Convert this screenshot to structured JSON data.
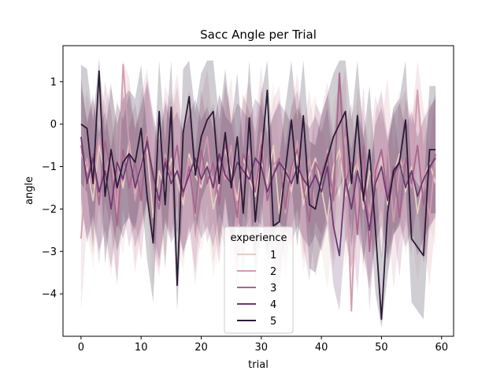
{
  "chart_data": {
    "type": "line",
    "title": "Sacc Angle per Trial",
    "xlabel": "trial",
    "ylabel": "angle",
    "xlim": [
      -3,
      62
    ],
    "ylim": [
      -5,
      1.85
    ],
    "xticks": [
      0,
      10,
      20,
      30,
      40,
      50,
      60
    ],
    "yticks": [
      -4,
      -3,
      -2,
      -1,
      0,
      1
    ],
    "grid": false,
    "legend": {
      "title": "experience",
      "placement": "lower-center"
    },
    "x": [
      0,
      1,
      2,
      3,
      4,
      5,
      6,
      7,
      8,
      9,
      10,
      11,
      12,
      13,
      14,
      15,
      16,
      17,
      18,
      19,
      20,
      21,
      22,
      23,
      24,
      25,
      26,
      27,
      28,
      29,
      30,
      31,
      32,
      33,
      34,
      35,
      36,
      37,
      38,
      39,
      40,
      41,
      42,
      43,
      44,
      45,
      46,
      47,
      48,
      49,
      50,
      51,
      52,
      53,
      54,
      55,
      56,
      57,
      58,
      59
    ],
    "series": [
      {
        "name": "1",
        "color": "#e8cdc0",
        "band_color": "#e8cdc0",
        "values": [
          -0.7,
          -1.0,
          -1.8,
          -0.5,
          -1.2,
          -2.0,
          -0.9,
          -1.5,
          -0.4,
          -1.7,
          -1.0,
          -0.6,
          -2.2,
          -1.1,
          -1.6,
          -0.8,
          -1.3,
          -1.9,
          -0.7,
          -1.2,
          -1.5,
          -0.9,
          -2.0,
          -1.4,
          -0.6,
          -1.1,
          -1.8,
          -0.8,
          -1.3,
          -1.7,
          -0.9,
          -1.4,
          -0.5,
          -2.1,
          -1.0,
          -1.6,
          -0.7,
          -1.9,
          -1.2,
          -0.8,
          -1.5,
          -2.3,
          -1.0,
          -0.6,
          -1.7,
          -1.3,
          -0.9,
          -2.0,
          -1.1,
          -1.5,
          -0.8,
          -1.9,
          -1.2,
          -0.7,
          -1.6,
          -1.0,
          -2.1,
          -1.3,
          -0.9,
          -1.4
        ],
        "lower": [
          -2.2,
          -2.6,
          -3.4,
          -2.0,
          -2.8,
          -3.6,
          -2.4,
          -3.1,
          -1.9,
          -3.3,
          -2.5,
          -2.1,
          -3.8,
          -2.6,
          -3.2,
          -2.3,
          -2.9,
          -3.5,
          -2.2,
          -2.7,
          -3.0,
          -2.4,
          -3.6,
          -2.9,
          -2.1,
          -2.6,
          -3.4,
          -2.3,
          -2.8,
          -3.3,
          -2.4,
          -2.9,
          -2.0,
          -3.7,
          -2.5,
          -3.1,
          -2.2,
          -3.5,
          -2.7,
          -2.3,
          -3.0,
          -3.9,
          -2.5,
          -2.1,
          -3.3,
          -2.8,
          -2.4,
          -3.6,
          -2.6,
          -3.0,
          -2.3,
          -3.5,
          -2.7,
          -2.2,
          -3.1,
          -2.5,
          -3.7,
          -2.8,
          -2.4,
          -2.9
        ],
        "upper": [
          0.8,
          0.6,
          -0.2,
          1.0,
          0.4,
          -0.4,
          0.6,
          0.1,
          1.1,
          -0.1,
          0.5,
          0.9,
          -0.6,
          0.4,
          0.0,
          0.7,
          0.3,
          -0.3,
          0.8,
          0.3,
          0.0,
          0.6,
          -0.4,
          0.1,
          0.9,
          0.4,
          -0.2,
          0.7,
          0.2,
          -0.1,
          0.6,
          0.1,
          1.0,
          -0.5,
          0.5,
          -0.1,
          0.8,
          -0.3,
          0.3,
          0.7,
          0.0,
          -0.7,
          0.5,
          0.9,
          -0.1,
          0.2,
          0.6,
          -0.4,
          0.4,
          0.0,
          0.7,
          -0.3,
          0.3,
          0.8,
          -0.1,
          0.5,
          -0.5,
          0.2,
          0.6,
          0.1
        ]
      },
      {
        "name": "2",
        "color": "#d49aae",
        "band_color": "#d49aae",
        "values": [
          -2.7,
          -0.8,
          -1.5,
          -0.3,
          -1.2,
          -0.6,
          -2.1,
          1.4,
          -0.5,
          -1.8,
          -0.9,
          -0.2,
          -1.4,
          -2.0,
          -0.7,
          -1.1,
          -0.4,
          -1.6,
          -0.8,
          -2.2,
          -1.0,
          -0.3,
          -1.7,
          -0.9,
          -1.3,
          -0.5,
          -2.4,
          -1.1,
          -0.6,
          -1.5,
          -0.2,
          -1.9,
          -1.0,
          -0.7,
          -2.1,
          -1.2,
          -0.4,
          -1.6,
          -0.8,
          -2.0,
          -1.3,
          -0.6,
          -1.8,
          -1.0,
          -0.3,
          -4.4,
          -0.7,
          -1.4,
          -2.1,
          -0.9,
          -1.6,
          -0.5,
          -2.3,
          -1.1,
          -0.8,
          -1.5,
          0.8,
          -1.2,
          -2.2,
          -0.7
        ],
        "lower": [
          -4.4,
          -2.4,
          -3.1,
          -1.9,
          -2.9,
          -2.2,
          -3.7,
          -0.4,
          -2.1,
          -3.5,
          -2.5,
          -1.8,
          -3.0,
          -3.6,
          -2.3,
          -2.7,
          -2.0,
          -3.2,
          -2.4,
          -3.8,
          -2.6,
          -1.9,
          -3.3,
          -2.5,
          -2.9,
          -2.1,
          -4.0,
          -2.7,
          -2.2,
          -3.1,
          -1.8,
          -3.5,
          -2.6,
          -2.3,
          -3.7,
          -2.8,
          -2.0,
          -3.2,
          -2.4,
          -3.6,
          -2.9,
          -2.2,
          -3.4,
          -2.6,
          -1.9,
          -4.5,
          -2.3,
          -3.0,
          -3.7,
          -2.5,
          -3.2,
          -2.1,
          -3.9,
          -2.7,
          -2.4,
          -3.1,
          -0.8,
          -2.8,
          -3.8,
          -2.3
        ],
        "upper": [
          -1.0,
          0.8,
          0.1,
          1.3,
          0.4,
          1.0,
          -0.5,
          1.5,
          1.1,
          -0.2,
          0.7,
          1.3,
          0.2,
          -0.4,
          0.9,
          0.5,
          1.2,
          0.0,
          0.8,
          -0.6,
          0.6,
          1.3,
          -0.1,
          0.7,
          0.3,
          1.1,
          -0.8,
          0.5,
          1.0,
          0.1,
          1.4,
          -0.3,
          0.6,
          0.9,
          -0.5,
          0.4,
          1.2,
          0.0,
          0.8,
          -0.4,
          0.3,
          1.0,
          -0.2,
          0.6,
          1.3,
          -2.8,
          0.9,
          0.2,
          -0.5,
          0.7,
          0.0,
          1.1,
          -0.7,
          0.5,
          0.8,
          0.1,
          1.5,
          0.4,
          -0.6,
          0.9
        ]
      },
      {
        "name": "3",
        "color": "#a8658e",
        "band_color": "#a8658e",
        "values": [
          -0.5,
          -1.3,
          -0.7,
          -1.9,
          -0.4,
          -1.1,
          -2.4,
          -0.6,
          -1.5,
          -0.9,
          -1.8,
          -0.3,
          -1.4,
          -2.0,
          -0.8,
          -1.2,
          -0.5,
          -1.7,
          -1.0,
          -2.1,
          -0.6,
          -1.4,
          -0.9,
          -1.9,
          -0.4,
          -1.3,
          -2.2,
          -0.7,
          -1.1,
          -1.6,
          -0.5,
          -1.8,
          -1.2,
          -0.8,
          -2.0,
          -1.0,
          -0.6,
          -1.5,
          -2.3,
          -0.9,
          -1.2,
          -0.7,
          -1.8,
          1.2,
          -1.4,
          -0.9,
          -2.6,
          -0.5,
          -3.0,
          -1.1,
          -0.6,
          -1.7,
          -1.0,
          -2.2,
          -0.8,
          -1.4,
          -0.5,
          -1.9,
          -1.1,
          -0.7
        ],
        "lower": [
          -1.9,
          -2.7,
          -2.1,
          -3.3,
          -1.8,
          -2.5,
          -3.8,
          -2.0,
          -2.9,
          -2.3,
          -3.2,
          -1.7,
          -2.8,
          -3.4,
          -2.2,
          -2.6,
          -1.9,
          -3.1,
          -2.4,
          -3.5,
          -2.0,
          -2.8,
          -2.3,
          -3.3,
          -1.8,
          -2.7,
          -3.6,
          -2.1,
          -2.5,
          -3.0,
          -1.9,
          -3.2,
          -2.6,
          -2.2,
          -3.4,
          -2.4,
          -2.0,
          -2.9,
          -3.7,
          -2.3,
          -2.6,
          -2.1,
          -3.2,
          -0.2,
          -2.8,
          -2.3,
          -4.0,
          -1.9,
          -4.4,
          -2.5,
          -2.0,
          -3.1,
          -2.4,
          -3.6,
          -2.2,
          -2.8,
          -1.9,
          -3.3,
          -2.5,
          -2.1
        ],
        "upper": [
          0.9,
          0.1,
          0.7,
          -0.5,
          1.0,
          0.3,
          -1.0,
          0.8,
          -0.1,
          0.5,
          -0.4,
          1.1,
          0.0,
          -0.6,
          0.6,
          0.2,
          0.9,
          -0.3,
          0.4,
          -0.7,
          0.8,
          0.0,
          0.5,
          -0.5,
          1.0,
          0.1,
          -0.8,
          0.7,
          0.3,
          -0.2,
          0.9,
          -0.4,
          0.2,
          0.6,
          -0.6,
          0.4,
          0.8,
          -0.1,
          -0.9,
          0.5,
          0.2,
          0.7,
          -0.4,
          1.3,
          0.0,
          0.5,
          -1.2,
          0.9,
          -1.6,
          0.3,
          0.8,
          -0.3,
          0.4,
          -0.8,
          0.6,
          0.0,
          0.9,
          -0.5,
          0.3,
          0.7
        ]
      },
      {
        "name": "4",
        "color": "#6b3a71",
        "band_color": "#6b3a71",
        "values": [
          -0.3,
          -1.4,
          -0.8,
          -1.6,
          -1.1,
          -2.0,
          -0.9,
          -1.3,
          -0.7,
          -1.5,
          -1.0,
          -0.4,
          -1.2,
          -1.8,
          -0.9,
          -1.4,
          -1.1,
          -1.6,
          -1.2,
          -0.8,
          -1.3,
          -1.0,
          -1.5,
          -0.7,
          -1.2,
          -1.4,
          -0.9,
          -1.1,
          -1.3,
          -0.8,
          -1.0,
          -1.6,
          -1.2,
          -0.9,
          -1.1,
          -1.4,
          -1.0,
          -1.3,
          -1.5,
          -1.2,
          -1.6,
          -1.0,
          -2.4,
          -3.1,
          -1.3,
          -2.0,
          -1.1,
          -1.7,
          -2.5,
          -1.4,
          -1.0,
          -1.8,
          -1.2,
          -0.9,
          -1.5,
          -1.1,
          -1.7,
          -1.3,
          -1.0,
          -0.8
        ],
        "lower": [
          -1.7,
          -2.8,
          -2.2,
          -3.0,
          -2.5,
          -3.4,
          -2.3,
          -2.7,
          -2.1,
          -2.9,
          -2.4,
          -1.8,
          -2.6,
          -3.2,
          -2.3,
          -2.8,
          -2.5,
          -3.0,
          -2.6,
          -2.2,
          -2.7,
          -2.4,
          -2.9,
          -2.1,
          -2.6,
          -2.8,
          -2.3,
          -2.5,
          -2.7,
          -2.2,
          -2.4,
          -3.0,
          -2.6,
          -2.3,
          -2.5,
          -2.8,
          -2.4,
          -2.7,
          -2.9,
          -2.6,
          -3.0,
          -2.4,
          -3.8,
          -4.4,
          -2.7,
          -3.4,
          -2.5,
          -3.1,
          -3.9,
          -2.8,
          -2.4,
          -3.2,
          -2.6,
          -2.3,
          -2.9,
          -2.5,
          -3.1,
          -2.7,
          -2.4,
          -2.2
        ],
        "upper": [
          1.1,
          0.0,
          0.6,
          -0.2,
          0.3,
          -0.6,
          0.5,
          0.1,
          0.7,
          -0.1,
          0.4,
          1.0,
          0.2,
          -0.4,
          0.5,
          0.0,
          0.3,
          -0.2,
          0.2,
          0.6,
          0.1,
          0.4,
          -0.1,
          0.7,
          0.2,
          0.0,
          0.5,
          0.3,
          0.1,
          0.6,
          0.4,
          -0.2,
          0.2,
          0.5,
          0.3,
          0.0,
          0.4,
          0.1,
          -0.1,
          0.2,
          -0.2,
          0.4,
          -1.0,
          -1.8,
          0.1,
          -0.6,
          0.3,
          -0.3,
          -1.1,
          0.0,
          0.4,
          -0.4,
          0.2,
          0.5,
          -0.1,
          0.3,
          -0.3,
          0.1,
          0.4,
          0.6
        ]
      },
      {
        "name": "5",
        "color": "#2a1a36",
        "band_color": "#2a1a36",
        "values": [
          0.0,
          -0.1,
          -1.4,
          1.25,
          -1.7,
          -0.6,
          -1.5,
          -0.9,
          -0.7,
          -0.9,
          -0.1,
          -1.7,
          -2.8,
          0.3,
          -1.9,
          0.4,
          -3.8,
          -0.2,
          0.65,
          -1.2,
          -0.3,
          0.1,
          0.3,
          -1.4,
          -0.2,
          -1.5,
          -0.3,
          -2.1,
          0.15,
          -2.3,
          -0.8,
          0.8,
          -2.4,
          -2.3,
          -1.1,
          0.1,
          -1.4,
          0.2,
          -1.9,
          -2.0,
          -1.3,
          -0.8,
          -0.3,
          0.0,
          0.3,
          -1.4,
          0.2,
          -1.8,
          -0.6,
          -2.5,
          -4.6,
          -2.1,
          -1.1,
          -0.9,
          0.1,
          -2.7,
          -2.9,
          -3.1,
          -0.6,
          -0.6
        ],
        "lower": [
          -1.4,
          -1.6,
          -2.9,
          -0.3,
          -3.3,
          -2.1,
          -3.0,
          -2.4,
          -2.2,
          -2.5,
          -1.6,
          -3.2,
          -4.2,
          -1.2,
          -3.4,
          -1.1,
          -4.4,
          -1.7,
          -0.9,
          -2.7,
          -1.8,
          -1.4,
          -1.2,
          -2.9,
          -1.7,
          -3.0,
          -1.8,
          -3.6,
          -1.4,
          -3.8,
          -2.3,
          -0.7,
          -3.9,
          -3.8,
          -2.6,
          -1.4,
          -2.9,
          -1.3,
          -3.4,
          -3.5,
          -2.8,
          -2.3,
          -1.8,
          -1.5,
          -1.2,
          -2.9,
          -1.3,
          -3.3,
          -2.1,
          -4.0,
          -4.8,
          -3.6,
          -2.6,
          -2.4,
          -1.4,
          -4.2,
          -4.4,
          -4.6,
          -2.1,
          -2.1
        ],
        "upper": [
          1.4,
          1.3,
          0.1,
          1.55,
          -0.2,
          0.9,
          0.0,
          0.6,
          0.8,
          0.6,
          1.4,
          -0.2,
          -1.3,
          1.5,
          -0.4,
          1.5,
          -2.3,
          1.3,
          1.5,
          0.3,
          1.2,
          1.5,
          1.5,
          0.1,
          1.3,
          0.0,
          1.2,
          -0.6,
          1.5,
          -0.8,
          0.7,
          1.5,
          -0.9,
          -0.8,
          0.4,
          1.5,
          0.1,
          1.5,
          -0.4,
          -0.5,
          0.2,
          0.7,
          1.2,
          1.5,
          1.5,
          0.1,
          1.5,
          -0.3,
          0.9,
          -1.0,
          -3.1,
          -0.6,
          0.4,
          0.6,
          1.5,
          -1.2,
          -1.4,
          -1.6,
          0.9,
          0.9
        ]
      }
    ]
  }
}
